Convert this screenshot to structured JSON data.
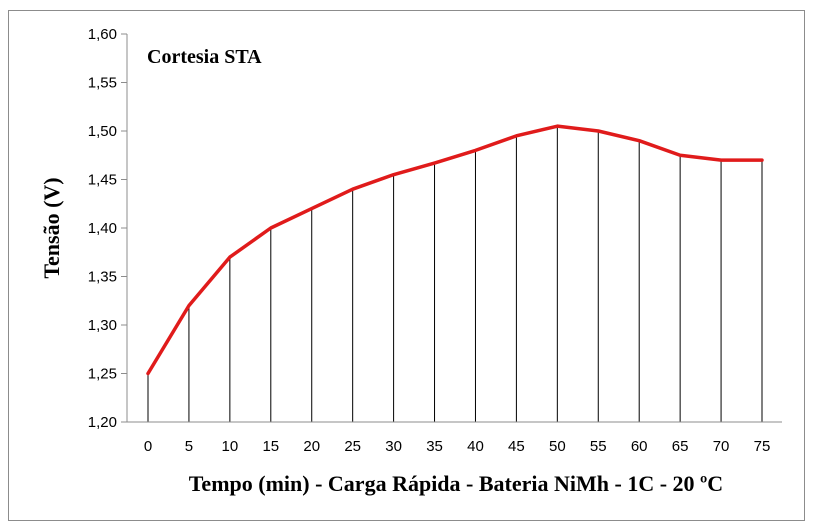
{
  "chart_data": {
    "type": "line",
    "annotation": "Cortesia STA",
    "xlabel": "Tempo (min) - Carga Rápida - Bateria NiMh - 1C - 20 ºC",
    "ylabel": "Tensão (V)",
    "x": [
      0,
      5,
      10,
      15,
      20,
      25,
      30,
      35,
      40,
      45,
      50,
      55,
      60,
      65,
      70,
      75
    ],
    "x_tick_labels": [
      "0",
      "5",
      "10",
      "15",
      "20",
      "25",
      "30",
      "35",
      "40",
      "45",
      "50",
      "55",
      "60",
      "65",
      "70",
      "75"
    ],
    "series": [
      {
        "values": [
          1.25,
          1.32,
          1.37,
          1.4,
          1.42,
          1.44,
          1.455,
          1.467,
          1.48,
          1.495,
          1.505,
          1.5,
          1.49,
          1.475,
          1.47,
          1.47
        ]
      }
    ],
    "y_ticks": [
      1.2,
      1.25,
      1.3,
      1.35,
      1.4,
      1.45,
      1.5,
      1.55,
      1.6
    ],
    "y_tick_labels": [
      "1,20",
      "1,25",
      "1,30",
      "1,35",
      "1,40",
      "1,45",
      "1,50",
      "1,55",
      "1,60"
    ],
    "ylim": [
      1.2,
      1.6
    ],
    "line_color": "#e01b1b",
    "drop_lines": true
  }
}
